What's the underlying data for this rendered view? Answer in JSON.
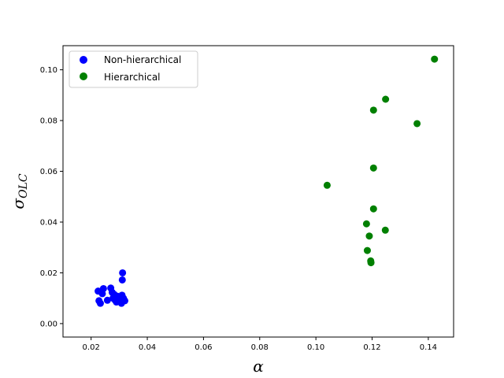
{
  "chart_data": {
    "type": "scatter",
    "xlabel": "α",
    "ylabel": "σ",
    "ylabel_sub": "OLC",
    "xlim": [
      0.01,
      0.149
    ],
    "ylim": [
      -0.0053,
      0.1095
    ],
    "xticks": [
      0.02,
      0.04,
      0.06,
      0.08,
      0.1,
      0.12,
      0.14
    ],
    "xtick_labels": [
      "0.02",
      "0.04",
      "0.06",
      "0.08",
      "0.10",
      "0.12",
      "0.14"
    ],
    "yticks": [
      0.0,
      0.02,
      0.04,
      0.06,
      0.08,
      0.1
    ],
    "ytick_labels": [
      "0.00",
      "0.02",
      "0.04",
      "0.06",
      "0.08",
      "0.10"
    ],
    "grid": false,
    "legend_position": "top-left",
    "series": [
      {
        "name": "Non-hierarchical",
        "color": "#0000ff",
        "points": [
          [
            0.0225,
            0.0128
          ],
          [
            0.0228,
            0.009
          ],
          [
            0.0233,
            0.008
          ],
          [
            0.024,
            0.0118
          ],
          [
            0.0244,
            0.0138
          ],
          [
            0.0258,
            0.0092
          ],
          [
            0.027,
            0.014
          ],
          [
            0.0275,
            0.0123
          ],
          [
            0.0278,
            0.01
          ],
          [
            0.0282,
            0.0115
          ],
          [
            0.0285,
            0.0093
          ],
          [
            0.029,
            0.0085
          ],
          [
            0.0293,
            0.0108
          ],
          [
            0.0298,
            0.009
          ],
          [
            0.03,
            0.0104
          ],
          [
            0.0305,
            0.0096
          ],
          [
            0.0308,
            0.008
          ],
          [
            0.031,
            0.0112
          ],
          [
            0.0311,
            0.0172
          ],
          [
            0.0312,
            0.02
          ],
          [
            0.0315,
            0.01
          ],
          [
            0.032,
            0.009
          ]
        ]
      },
      {
        "name": "Hierarchical",
        "color": "#008000",
        "points": [
          [
            0.104,
            0.0545
          ],
          [
            0.118,
            0.0393
          ],
          [
            0.1183,
            0.0288
          ],
          [
            0.119,
            0.0345
          ],
          [
            0.1195,
            0.0247
          ],
          [
            0.1196,
            0.024
          ],
          [
            0.1205,
            0.0452
          ],
          [
            0.1205,
            0.0613
          ],
          [
            0.1205,
            0.0841
          ],
          [
            0.1247,
            0.0368
          ],
          [
            0.1248,
            0.0884
          ],
          [
            0.136,
            0.0788
          ],
          [
            0.1422,
            0.1042
          ]
        ]
      }
    ]
  }
}
